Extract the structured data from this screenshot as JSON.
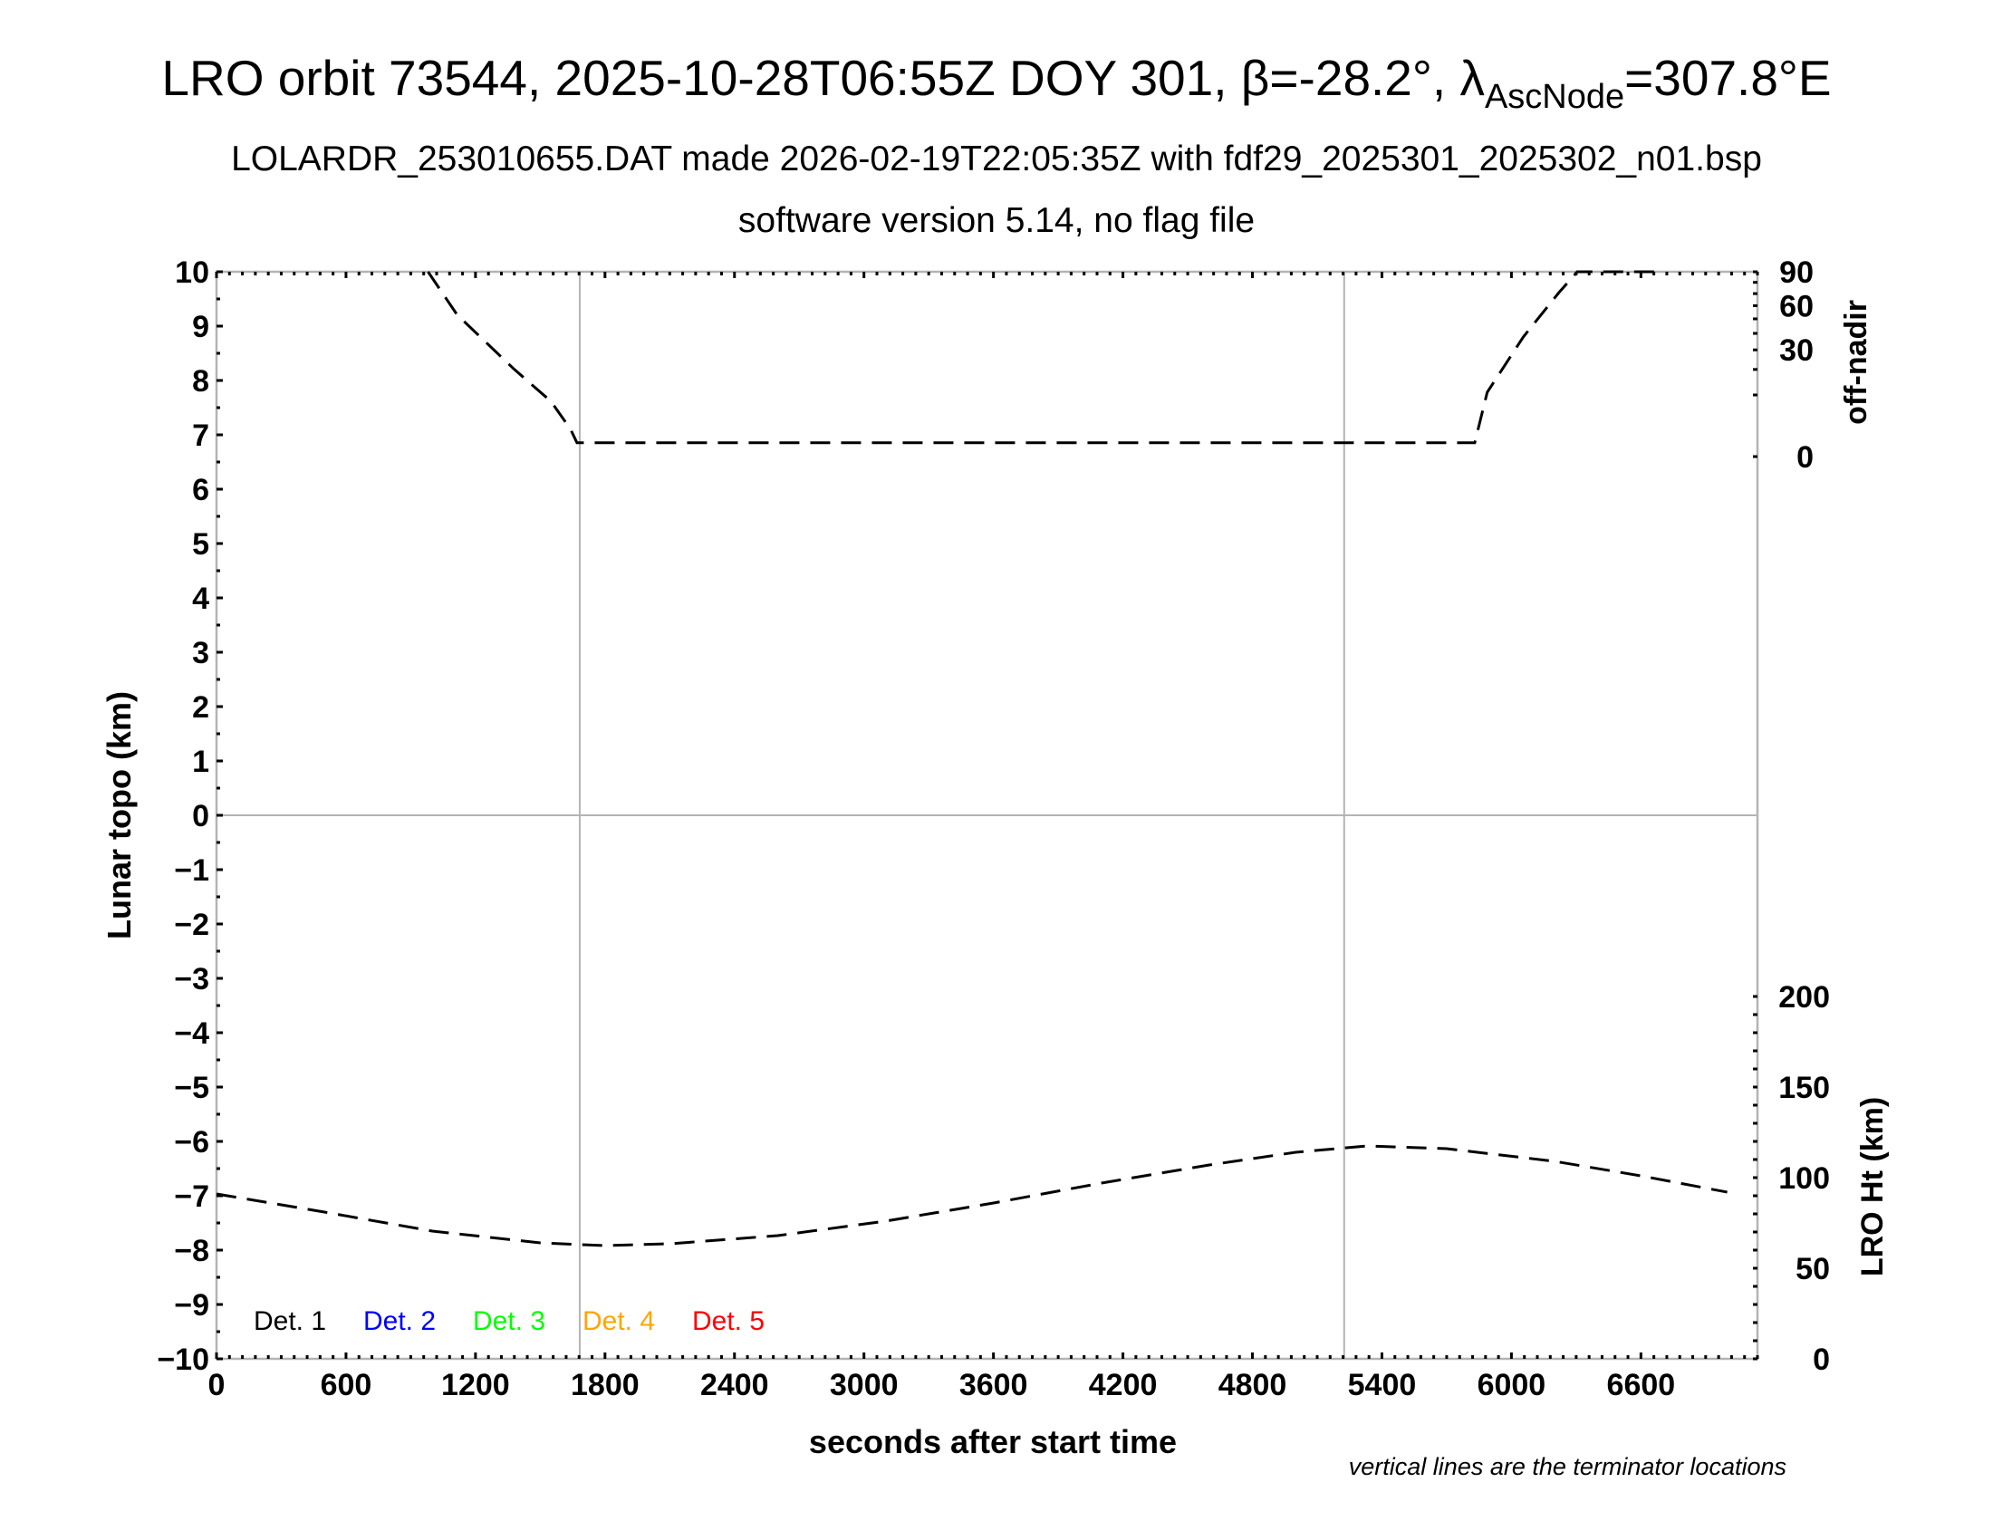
{
  "title": {
    "main": "LRO orbit 73544, 2025-10-28T06:55Z DOY 301, β=-28.2°, λ",
    "sub_script": "AscNode",
    "tail": "=307.8°E"
  },
  "subtitle": "LOLARDR_253010655.DAT made 2026-02-19T22:05:35Z with fdf29_2025301_2025302_n01.bsp",
  "subtitle2": "software version 5.14, no flag file",
  "note": "vertical lines are the terminator locations",
  "chart_data": {
    "type": "line",
    "xlabel": "seconds after start time",
    "ylabel": "Lunar topo (km)",
    "y2label_top": "off-nadir",
    "y2label_bottom": "LRO Ht (km)",
    "xlim": [
      0,
      7140
    ],
    "ylim": [
      -10,
      10
    ],
    "x_ticks": [
      0,
      600,
      1200,
      1800,
      2400,
      3000,
      3600,
      4200,
      4800,
      5400,
      6000,
      6600
    ],
    "y_ticks": [
      10,
      9,
      8,
      7,
      6,
      5,
      4,
      3,
      2,
      1,
      0,
      -1,
      -2,
      -3,
      -4,
      -5,
      -6,
      -7,
      -8,
      -9,
      -10
    ],
    "y_tick_labels": [
      "10",
      "9",
      "8",
      "7",
      "6",
      "5",
      "4",
      "3",
      "2",
      "1",
      "0",
      "−1",
      "−2",
      "−3",
      "−4",
      "−5",
      "−6",
      "−7",
      "−8",
      "−9",
      "−10"
    ],
    "offnadir_ticks": [
      90,
      60,
      30,
      0
    ],
    "offnadir_scale": "sqrt",
    "ht_ticks": [
      200,
      150,
      100,
      50,
      0
    ],
    "ht_range": [
      0,
      200
    ],
    "terminators": [
      1683,
      5225
    ],
    "legend": [
      {
        "label": "Det. 1",
        "color": "#000000"
      },
      {
        "label": "Det. 2",
        "color": "#0000ff"
      },
      {
        "label": "Det. 3",
        "color": "#00ff00"
      },
      {
        "label": "Det. 4",
        "color": "#ffa500"
      },
      {
        "label": "Det. 5",
        "color": "#ff0000"
      }
    ],
    "legend_placement": "bottom-left",
    "series": [
      {
        "axis": "off-nadir",
        "style": "dashed",
        "color": "#000000",
        "x": [
          980,
          1115,
          1380,
          1550,
          1640,
          1670,
          2000,
          3000,
          4000,
          5000,
          5830,
          5888,
          6055,
          6220,
          6305,
          6670
        ],
        "y": [
          90,
          53,
          20,
          8,
          2,
          0.5,
          0.5,
          0.5,
          0.5,
          0.5,
          0.5,
          10.9,
          37.7,
          70.9,
          90,
          90
        ]
      },
      {
        "axis": "LRO Ht",
        "style": "dashed",
        "color": "#000000",
        "x": [
          0,
          500,
          1000,
          1500,
          1800,
          2100,
          2600,
          3100,
          3600,
          4100,
          4600,
          5000,
          5330,
          5700,
          6200,
          6600,
          7000
        ],
        "y": [
          91,
          81,
          70.5,
          64,
          62.5,
          63.5,
          68,
          76,
          86,
          97,
          107,
          114,
          117.5,
          116,
          109,
          101,
          92
        ]
      }
    ]
  }
}
